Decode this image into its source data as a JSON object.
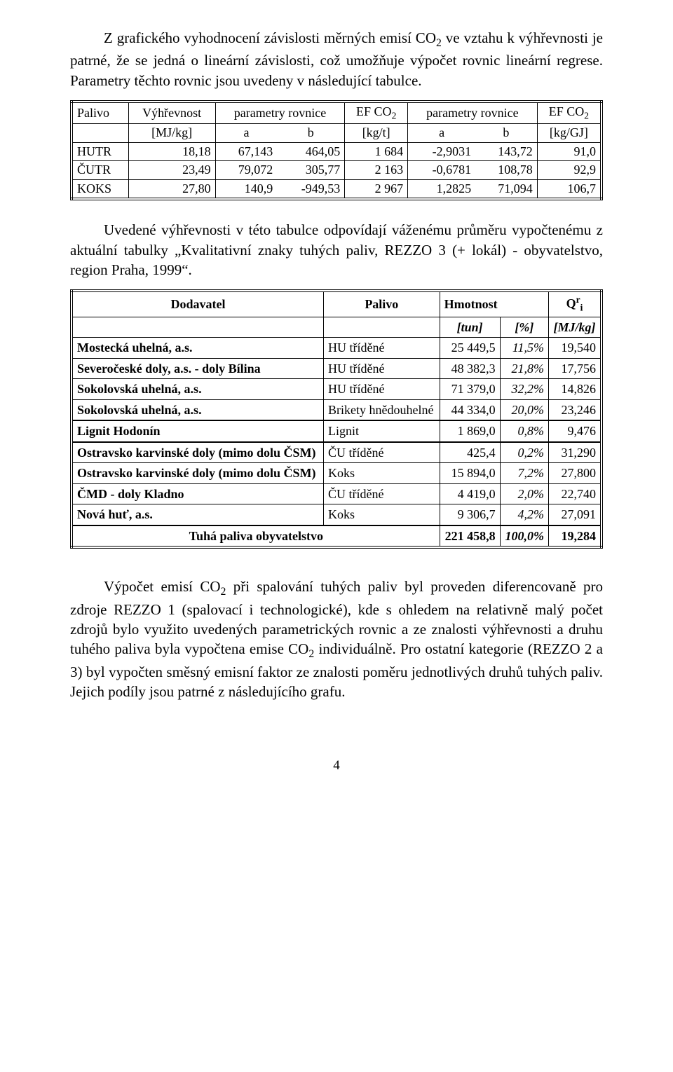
{
  "para1": {
    "pre": "Z grafického vyhodnocení závislosti měrných emisí CO",
    "sub": "2",
    "post": " ve vztahu k výhřevnosti je patrné, že se jedná o lineární závislosti, což umožňuje výpočet rovnic lineární regrese. Parametry těchto rovnic jsou uvedeny v následující tabulce."
  },
  "table1": {
    "header1": {
      "c1": "Palivo",
      "c2": "Výhřevnost",
      "c3": "parametry rovnice",
      "c4_pre": "EF CO",
      "c4_sub": "2",
      "c5": "parametry rovnice",
      "c6_pre": "EF CO",
      "c6_sub": "2"
    },
    "header2": {
      "u1": "[MJ/kg]",
      "u2": "a",
      "u3": "b",
      "u4": "[kg/t]",
      "u5": "a",
      "u6": "b",
      "u7": "[kg/GJ]"
    },
    "rows": [
      {
        "p": "HUTR",
        "v": "18,18",
        "a1": "67,143",
        "b1": "464,05",
        "ef1": "1 684",
        "a2": "-2,9031",
        "b2": "143,72",
        "ef2": "91,0"
      },
      {
        "p": "ČUTR",
        "v": "23,49",
        "a1": "79,072",
        "b1": "305,77",
        "ef1": "2 163",
        "a2": "-0,6781",
        "b2": "108,78",
        "ef2": "92,9"
      },
      {
        "p": "KOKS",
        "v": "27,80",
        "a1": "140,9",
        "b1": "-949,53",
        "ef1": "2 967",
        "a2": "1,2825",
        "b2": "71,094",
        "ef2": "106,7"
      }
    ]
  },
  "para2": "Uvedené výhřevnosti v této tabulce odpovídají váženému průměru vypočtenému z aktuální tabulky „Kvalitativní znaky tuhých paliv, REZZO 3 (+ lokál) - obyvatelstvo, region Praha, 1999“.",
  "table2": {
    "hdr1": {
      "c1": "Dodavatel",
      "c2": "Palivo",
      "c3": "Hmotnost",
      "c4_pre": "Q",
      "c4_sup": "r",
      "c4_sub": "i"
    },
    "hdr2": {
      "u3": "[tun]",
      "u4": "[%]",
      "u5": "[MJ/kg]"
    },
    "rows": [
      {
        "d": "Mostecká uhelná, a.s.",
        "p": "HU tříděné",
        "m": "25 449,5",
        "pc": "11,5%",
        "q": "19,540",
        "thick": false
      },
      {
        "d": "Severočeské doly, a.s. - doly Bílina",
        "p": "HU tříděné",
        "m": "48 382,3",
        "pc": "21,8%",
        "q": "17,756",
        "thick": false
      },
      {
        "d": "Sokolovská uhelná, a.s.",
        "p": "HU tříděné",
        "m": "71 379,0",
        "pc": "32,2%",
        "q": "14,826",
        "thick": false
      },
      {
        "d": "Sokolovská uhelná, a.s.",
        "p": "Brikety hnědouhelné",
        "m": "44 334,0",
        "pc": "20,0%",
        "q": "23,246",
        "thick": true
      },
      {
        "d": "Lignit Hodonín",
        "p": "Lignit",
        "m": "1 869,0",
        "pc": "0,8%",
        "q": "9,476",
        "thick": true
      },
      {
        "d": "Ostravsko karvinské doly (mimo dolu ČSM)",
        "p": "ČU tříděné",
        "m": "425,4",
        "pc": "0,2%",
        "q": "31,290",
        "thick": false
      },
      {
        "d": "Ostravsko karvinské doly (mimo dolu ČSM)",
        "p": "Koks",
        "m": "15 894,0",
        "pc": "7,2%",
        "q": "27,800",
        "thick": false
      },
      {
        "d": "ČMD - doly Kladno",
        "p": "ČU tříděné",
        "m": "4 419,0",
        "pc": "2,0%",
        "q": "22,740",
        "thick": false
      },
      {
        "d": "Nová huť, a.s.",
        "p": "Koks",
        "m": "9 306,7",
        "pc": "4,2%",
        "q": "27,091",
        "thick": true
      }
    ],
    "total": {
      "d": "Tuhá paliva obyvatelstvo",
      "m": "221 458,8",
      "pc": "100,0%",
      "q": "19,284"
    }
  },
  "para3": {
    "s1_pre": "Výpočet emisí CO",
    "s1_sub": "2",
    "s1_post": " při spalování tuhých paliv byl proveden diferencovaně pro zdroje REZZO 1 (spalovací i technologické), kde s ohledem na relativně malý počet zdrojů bylo využito uvedených parametrických rovnic a ze znalosti výhřevnosti a druhu tuhého paliva byla vypočtena emise CO",
    "s2_sub": "2",
    "s2_post": " individuálně. Pro ostatní kategorie (REZZO 2 a 3) byl vypočten směsný emisní faktor ze znalosti poměru jednotlivých druhů tuhých paliv. Jejich podíly jsou patrné z následujícího grafu."
  },
  "pagenum": "4"
}
